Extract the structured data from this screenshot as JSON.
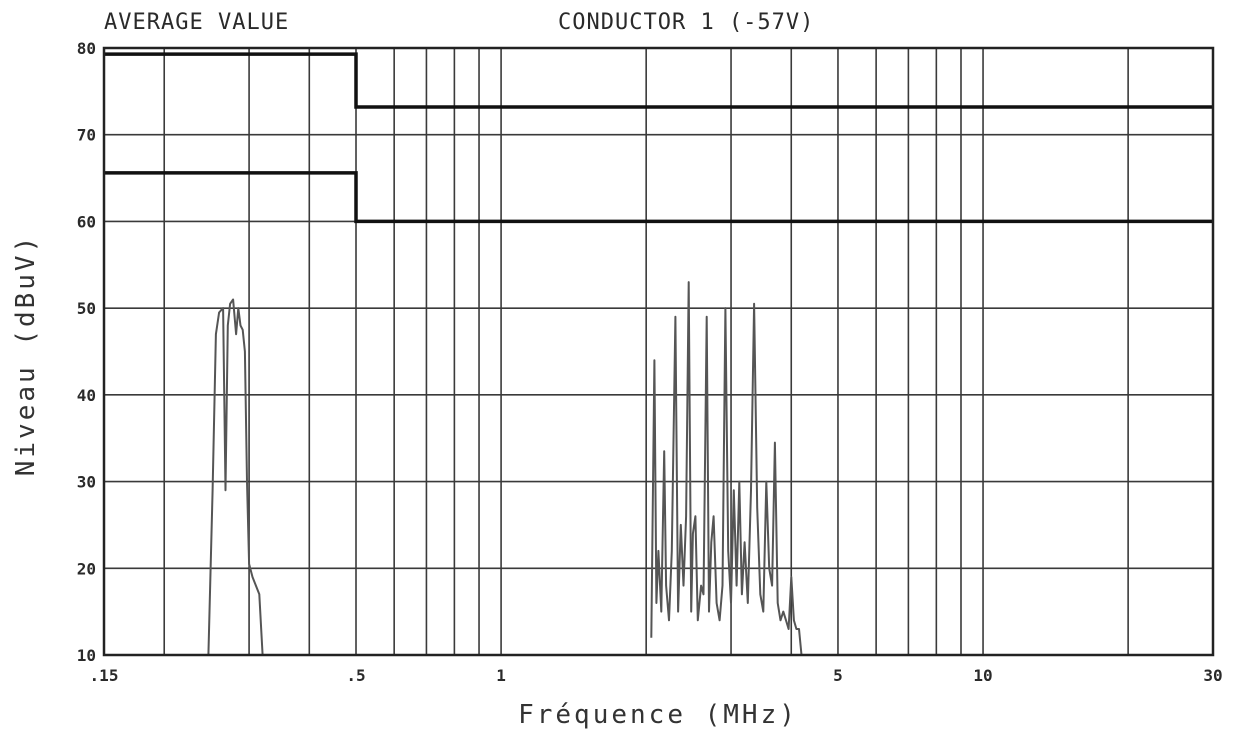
{
  "header": {
    "left": "AVERAGE VALUE",
    "right": "CONDUCTOR 1 (-57V)"
  },
  "chart_data": {
    "type": "line",
    "xscale": "log",
    "xlabel": "Fréquence (MHz)",
    "ylabel": "Niveau (dBuV)",
    "xlim": [
      0.15,
      30
    ],
    "ylim": [
      10,
      80
    ],
    "xticks": [
      {
        "value": 0.15,
        "label": ".15"
      },
      {
        "value": 0.5,
        "label": ".5"
      },
      {
        "value": 1,
        "label": "1"
      },
      {
        "value": 5,
        "label": "5"
      },
      {
        "value": 10,
        "label": "10"
      },
      {
        "value": 30,
        "label": "30"
      }
    ],
    "yticks": [
      {
        "value": 10,
        "label": "10"
      },
      {
        "value": 20,
        "label": "20"
      },
      {
        "value": 30,
        "label": "30"
      },
      {
        "value": 40,
        "label": "40"
      },
      {
        "value": 50,
        "label": "50"
      },
      {
        "value": 60,
        "label": "60"
      },
      {
        "value": 70,
        "label": "70"
      },
      {
        "value": 80,
        "label": "80"
      }
    ],
    "xgrid": [
      0.15,
      0.2,
      0.3,
      0.4,
      0.5,
      0.6,
      0.7,
      0.8,
      0.9,
      1,
      2,
      3,
      4,
      5,
      6,
      7,
      8,
      9,
      10,
      20,
      30
    ],
    "grid": true,
    "series": [
      {
        "role": "limit",
        "color": "#111111",
        "x": [
          0.15,
          0.5,
          0.5,
          30
        ],
        "y": [
          79.3,
          79.3,
          73.2,
          73.2
        ]
      },
      {
        "role": "limit",
        "color": "#111111",
        "x": [
          0.15,
          0.5,
          0.5,
          30
        ],
        "y": [
          65.6,
          65.6,
          60.0,
          60.0
        ]
      },
      {
        "role": "measurement",
        "color": "#555555",
        "x": [
          0.247,
          0.252,
          0.256,
          0.26,
          0.265,
          0.268,
          0.271,
          0.274,
          0.278,
          0.282,
          0.285,
          0.288,
          0.291,
          0.294,
          0.297,
          0.3,
          0.305,
          0.31,
          0.315,
          0.32
        ],
        "y": [
          10,
          29,
          47,
          49.5,
          50,
          29,
          48,
          50.5,
          51,
          47,
          50,
          48,
          47.5,
          45,
          30,
          20.5,
          19,
          18,
          17,
          10
        ]
      },
      {
        "role": "measurement",
        "color": "#555555",
        "x": [
          2.05,
          2.08,
          2.1,
          2.12,
          2.15,
          2.18,
          2.2,
          2.23,
          2.26,
          2.3,
          2.33,
          2.36,
          2.39,
          2.42,
          2.45,
          2.48,
          2.5,
          2.53,
          2.56,
          2.6,
          2.63,
          2.67,
          2.7,
          2.73,
          2.76,
          2.8,
          2.84,
          2.88,
          2.92,
          2.96,
          3.0,
          3.04,
          3.08,
          3.12,
          3.16,
          3.2,
          3.25,
          3.3,
          3.35,
          3.4,
          3.45,
          3.5,
          3.55,
          3.6,
          3.65,
          3.7,
          3.75,
          3.8,
          3.85,
          3.9,
          3.95,
          4.0,
          4.05,
          4.1,
          4.15,
          4.2
        ],
        "y": [
          12,
          44,
          16,
          22,
          15,
          33.5,
          18,
          14,
          22,
          49,
          15,
          25,
          18,
          26,
          53,
          15,
          24,
          26,
          14,
          18,
          17,
          49,
          15,
          23,
          26,
          16,
          14,
          18,
          50,
          22,
          16,
          29,
          18,
          30,
          17,
          23,
          16,
          29,
          50.5,
          27,
          17,
          15,
          30,
          20,
          18,
          34.5,
          16,
          14,
          15,
          14,
          13,
          19,
          14,
          13,
          13,
          10
        ]
      }
    ]
  }
}
